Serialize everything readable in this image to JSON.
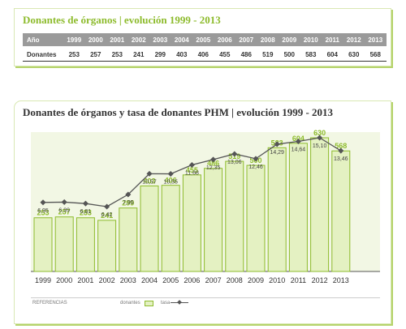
{
  "table_panel": {
    "title": "Donantes de órganos | evolución 1999 - 2013",
    "header_label": "Año",
    "row_label": "Donantes"
  },
  "chart_panel": {
    "title": "Donantes de órganos y tasa de donantes PHM | evolución 1999 - 2013"
  },
  "legend": {
    "heading": "REFERENCIAS",
    "donors_label": "donantes",
    "rate_label": "tasa"
  },
  "colors": {
    "bar_fill": "#e4f1c2",
    "bar_stroke": "#8dbb2c",
    "bar_label": "#8dbb2c",
    "line": "#555555",
    "accent": "#b5d36a"
  },
  "chart_data": {
    "type": "bar",
    "categories": [
      "1999",
      "2000",
      "2001",
      "2002",
      "2003",
      "2004",
      "2005",
      "2006",
      "2007",
      "2008",
      "2009",
      "2010",
      "2011",
      "2012",
      "2013"
    ],
    "series": [
      {
        "values": [
          253,
          257,
          253,
          241,
          299,
          403,
          406,
          455,
          486,
          519,
          500,
          583,
          604,
          630,
          568
        ]
      },
      {
        "type": "line",
        "values": [
          6.95,
          6.99,
          6.81,
          6.42,
          7.95,
          10.57,
          10.55,
          11.68,
          12.35,
          13.06,
          12.46,
          14.29,
          14.64,
          15.1,
          13.46
        ],
        "labels": [
          "6,95",
          "6,99",
          "6,81",
          "6,42",
          "7,95",
          "10,57",
          "10,55",
          "11,68",
          "12,35",
          "13,06",
          "12,46",
          "14,29",
          "14,64",
          "15,10",
          "13,46"
        ]
      }
    ],
    "xlabel": "",
    "ylabel": "",
    "grid": false,
    "legend": "bottom-left"
  }
}
